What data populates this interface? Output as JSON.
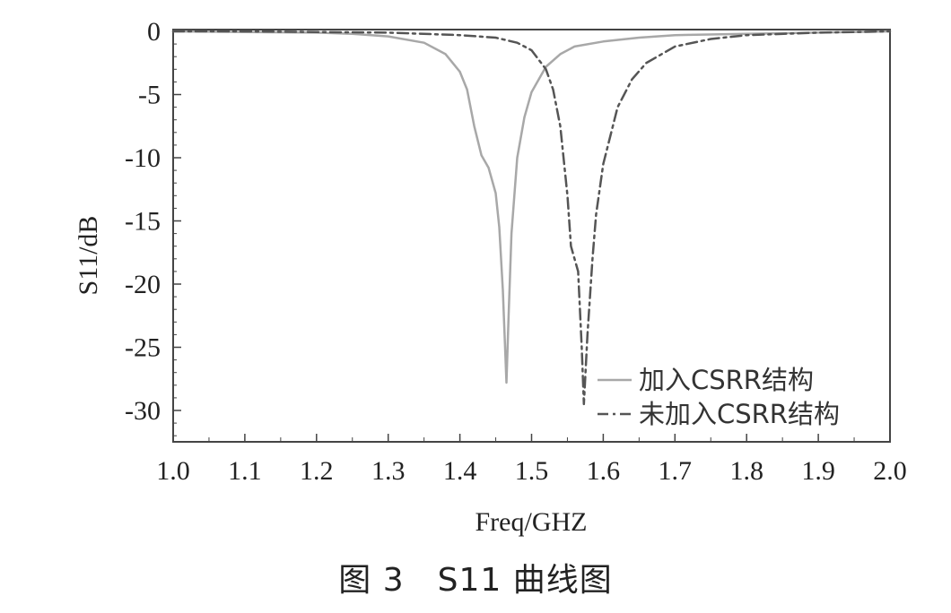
{
  "caption": "图 3　S11 曲线图",
  "chart_data": {
    "type": "line",
    "title": "",
    "xlabel": "Freq/GHZ",
    "ylabel": "S11/dB",
    "xlim": [
      1.0,
      2.0
    ],
    "ylim": [
      -32.5,
      0
    ],
    "xticks": [
      "1.0",
      "1.1",
      "1.2",
      "1.3",
      "1.4",
      "1.5",
      "1.6",
      "1.7",
      "1.8",
      "1.9",
      "2.0"
    ],
    "yticks": [
      "0",
      "-5",
      "-10",
      "-15",
      "-20",
      "-25",
      "-30"
    ],
    "legend_position": "bottom-right",
    "grid": false,
    "series": [
      {
        "name": "加入CSRR结构",
        "style": "solid",
        "color": "#a8a8a8",
        "x": [
          1.0,
          1.1,
          1.2,
          1.25,
          1.3,
          1.35,
          1.38,
          1.4,
          1.41,
          1.42,
          1.43,
          1.44,
          1.45,
          1.455,
          1.46,
          1.465,
          1.468,
          1.472,
          1.48,
          1.49,
          1.5,
          1.52,
          1.54,
          1.56,
          1.6,
          1.65,
          1.7,
          1.8,
          1.9,
          2.0
        ],
        "y": [
          0,
          -0.05,
          -0.1,
          -0.2,
          -0.4,
          -0.9,
          -1.8,
          -3.2,
          -4.6,
          -7.5,
          -9.8,
          -10.8,
          -12.8,
          -15.5,
          -20.5,
          -27.8,
          -22.5,
          -16.0,
          -10.0,
          -6.8,
          -4.8,
          -2.8,
          -1.8,
          -1.2,
          -0.8,
          -0.5,
          -0.3,
          -0.2,
          -0.1,
          0
        ]
      },
      {
        "name": "未加入CSRR结构",
        "style": "dash-dot",
        "color": "#555555",
        "x": [
          1.0,
          1.1,
          1.2,
          1.3,
          1.4,
          1.45,
          1.48,
          1.5,
          1.52,
          1.53,
          1.54,
          1.55,
          1.555,
          1.56,
          1.565,
          1.57,
          1.573,
          1.578,
          1.585,
          1.59,
          1.6,
          1.62,
          1.64,
          1.66,
          1.7,
          1.75,
          1.8,
          1.9,
          2.0
        ],
        "y": [
          0,
          0,
          -0.05,
          -0.1,
          -0.3,
          -0.5,
          -0.9,
          -1.5,
          -3.0,
          -4.6,
          -7.5,
          -13.0,
          -17.0,
          -18.0,
          -19.0,
          -25.0,
          -29.5,
          -24.0,
          -18.0,
          -14.5,
          -10.5,
          -6.0,
          -3.8,
          -2.5,
          -1.2,
          -0.6,
          -0.3,
          -0.1,
          0
        ]
      }
    ]
  }
}
